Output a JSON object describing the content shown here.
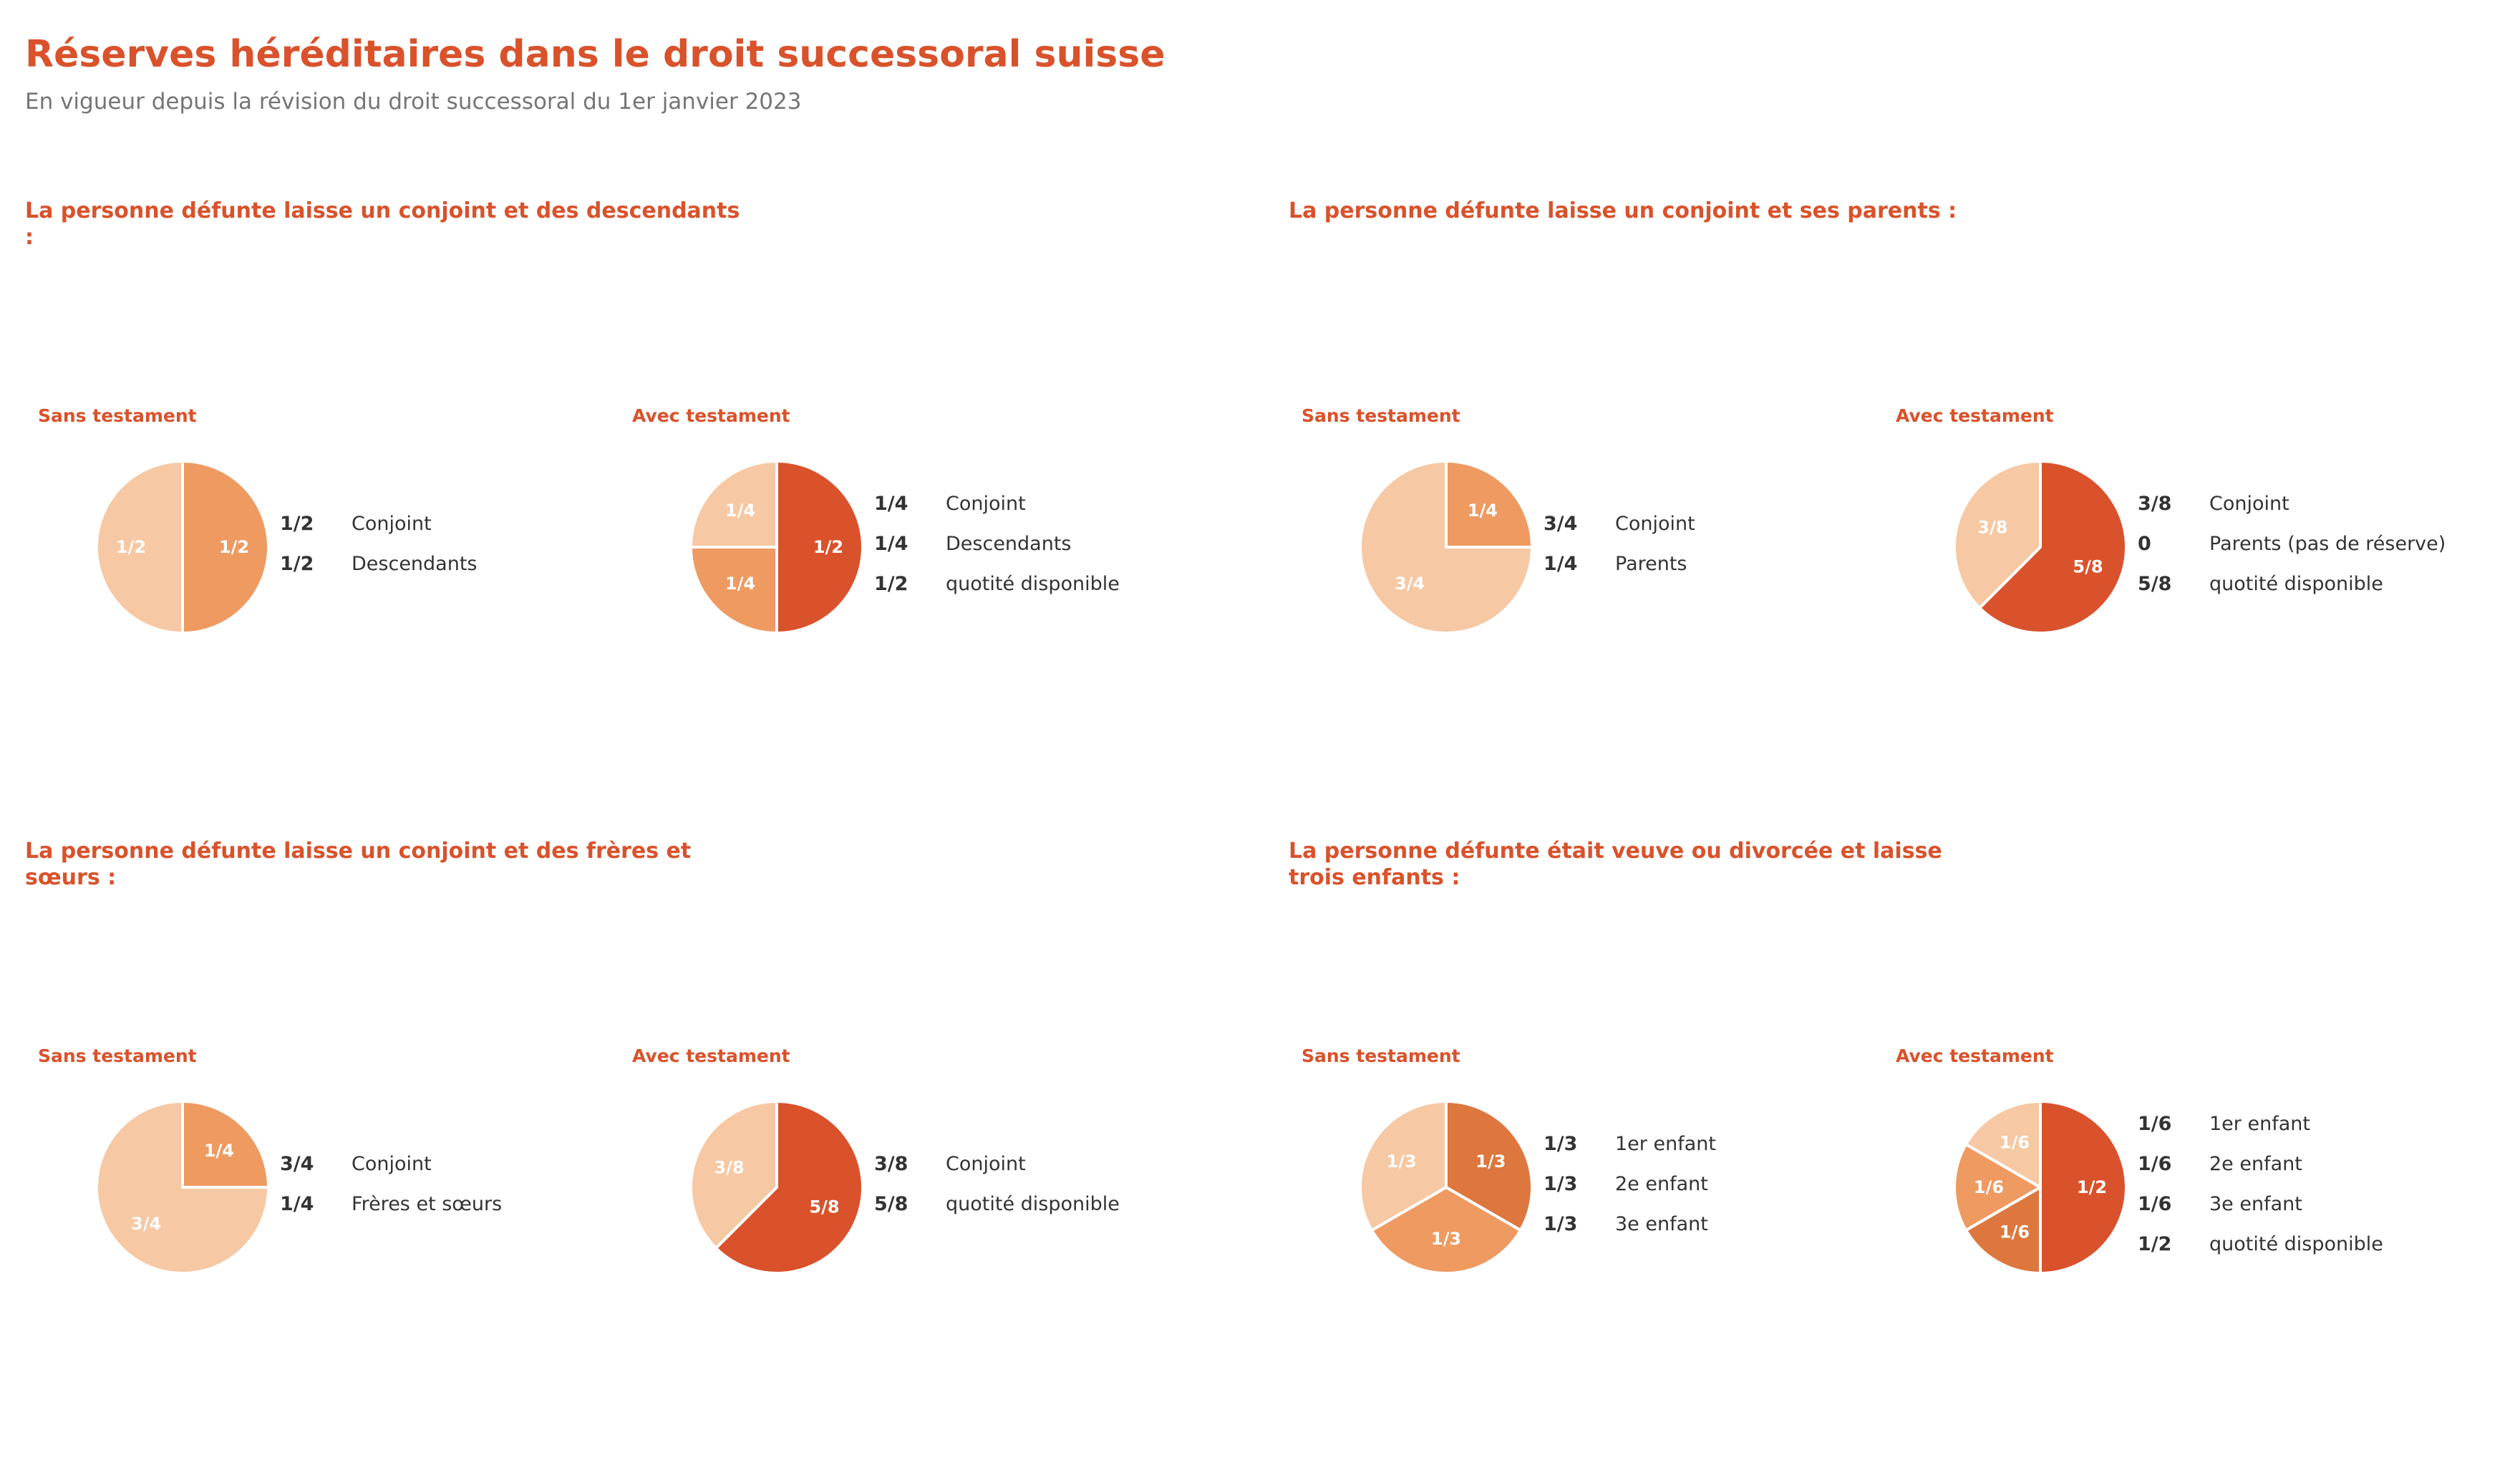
{
  "header": {
    "title": "Réserves héréditaires dans le droit successoral suisse",
    "subtitle": "En vigueur depuis la révision du droit successoral du 1er janvier 2023"
  },
  "colors": {
    "accent": "#d9522b",
    "dark_orange": "#d9522b",
    "mid_orange": "#dd773e",
    "orange": "#ee9a61",
    "light_orange": "#f6c8a3"
  },
  "chart_data": [
    {
      "type": "pie",
      "section": "La personne défunte laisse un conjoint et des descendants :",
      "title": "Sans testament",
      "slices": [
        {
          "label": "1/2",
          "value": 0.5,
          "name": "Conjoint",
          "color": "#ee9a61"
        },
        {
          "label": "1/2",
          "value": 0.5,
          "name": "Descendants",
          "color": "#f6c8a3"
        }
      ],
      "legend": [
        {
          "fraction": "1/2",
          "label": "Conjoint"
        },
        {
          "fraction": "1/2",
          "label": "Descendants"
        }
      ]
    },
    {
      "type": "pie",
      "section": "La personne défunte laisse un conjoint et des descendants :",
      "title": "Avec testament",
      "slices": [
        {
          "label": "1/2",
          "value": 0.5,
          "name": "quotité disponible",
          "color": "#d9522b"
        },
        {
          "label": "1/4",
          "value": 0.25,
          "name": "Descendants",
          "color": "#ee9a61"
        },
        {
          "label": "1/4",
          "value": 0.25,
          "name": "Conjoint",
          "color": "#f6c8a3"
        }
      ],
      "legend": [
        {
          "fraction": "1/4",
          "label": "Conjoint"
        },
        {
          "fraction": "1/4",
          "label": "Descendants"
        },
        {
          "fraction": "1/2",
          "label": "quotité disponible"
        }
      ]
    },
    {
      "type": "pie",
      "section": "La personne défunte laisse un conjoint et ses parents :",
      "title": "Sans testament",
      "slices": [
        {
          "label": "1/4",
          "value": 0.25,
          "name": "Parents",
          "color": "#ee9a61"
        },
        {
          "label": "3/4",
          "value": 0.75,
          "name": "Conjoint",
          "color": "#f6c8a3"
        }
      ],
      "legend": [
        {
          "fraction": "3/4",
          "label": "Conjoint"
        },
        {
          "fraction": "1/4",
          "label": "Parents"
        }
      ]
    },
    {
      "type": "pie",
      "section": "La personne défunte laisse un conjoint et ses parents :",
      "title": "Avec testament",
      "slices": [
        {
          "label": "5/8",
          "value": 0.625,
          "name": "quotité disponible",
          "color": "#d9522b"
        },
        {
          "label": "3/8",
          "value": 0.375,
          "name": "Conjoint",
          "color": "#f6c8a3"
        }
      ],
      "legend": [
        {
          "fraction": "3/8",
          "label": "Conjoint"
        },
        {
          "fraction": "0",
          "label": "Parents (pas de réserve)"
        },
        {
          "fraction": "5/8",
          "label": "quotité disponible"
        }
      ]
    },
    {
      "type": "pie",
      "section": "La personne défunte laisse un conjoint et des frères et sœurs :",
      "title": "Sans testament",
      "slices": [
        {
          "label": "1/4",
          "value": 0.25,
          "name": "Frères et sœurs",
          "color": "#ee9a61"
        },
        {
          "label": "3/4",
          "value": 0.75,
          "name": "Conjoint",
          "color": "#f6c8a3"
        }
      ],
      "legend": [
        {
          "fraction": "3/4",
          "label": "Conjoint"
        },
        {
          "fraction": "1/4",
          "label": "Frères et sœurs"
        }
      ]
    },
    {
      "type": "pie",
      "section": "La personne défunte laisse un conjoint et des frères et sœurs :",
      "title": "Avec testament",
      "slices": [
        {
          "label": "5/8",
          "value": 0.625,
          "name": "quotité disponible",
          "color": "#d9522b"
        },
        {
          "label": "3/8",
          "value": 0.375,
          "name": "Conjoint",
          "color": "#f6c8a3"
        }
      ],
      "legend": [
        {
          "fraction": "3/8",
          "label": "Conjoint"
        },
        {
          "fraction": "5/8",
          "label": "quotité disponible"
        }
      ]
    },
    {
      "type": "pie",
      "section": "La personne défunte était veuve ou divorcée et laisse trois enfants :",
      "title": "Sans testament",
      "slices": [
        {
          "label": "1/3",
          "value": 0.3333,
          "name": "1er enfant",
          "color": "#dd773e"
        },
        {
          "label": "1/3",
          "value": 0.3333,
          "name": "2e enfant",
          "color": "#ee9a61"
        },
        {
          "label": "1/3",
          "value": 0.3334,
          "name": "3e enfant",
          "color": "#f6c8a3"
        }
      ],
      "legend": [
        {
          "fraction": "1/3",
          "label": "1er enfant"
        },
        {
          "fraction": "1/3",
          "label": "2e enfant"
        },
        {
          "fraction": "1/3",
          "label": "3e enfant"
        }
      ]
    },
    {
      "type": "pie",
      "section": "La personne défunte était veuve ou divorcée et laisse trois enfants :",
      "title": "Avec testament",
      "slices": [
        {
          "label": "1/2",
          "value": 0.5,
          "name": "quotité disponible",
          "color": "#d9522b"
        },
        {
          "label": "1/6",
          "value": 0.1667,
          "name": "1er enfant",
          "color": "#dd773e"
        },
        {
          "label": "1/6",
          "value": 0.1667,
          "name": "2e enfant",
          "color": "#ee9a61"
        },
        {
          "label": "1/6",
          "value": 0.1666,
          "name": "3e enfant",
          "color": "#f6c8a3"
        }
      ],
      "legend": [
        {
          "fraction": "1/6",
          "label": "1er enfant"
        },
        {
          "fraction": "1/6",
          "label": "2e enfant"
        },
        {
          "fraction": "1/6",
          "label": "3e enfant"
        },
        {
          "fraction": "1/2",
          "label": "quotité disponible"
        }
      ]
    }
  ],
  "sections": [
    {
      "title": "La personne défunte laisse un conjoint et des descendants :",
      "panels": [
        0,
        1
      ]
    },
    {
      "title": "La personne défunte laisse un conjoint et ses parents :",
      "panels": [
        2,
        3
      ]
    },
    {
      "title": "La personne défunte laisse un conjoint et des frères et sœurs :",
      "panels": [
        4,
        5
      ]
    },
    {
      "title": "La personne défunte était veuve ou divorcée et laisse trois enfants :",
      "panels": [
        6,
        7
      ]
    }
  ]
}
